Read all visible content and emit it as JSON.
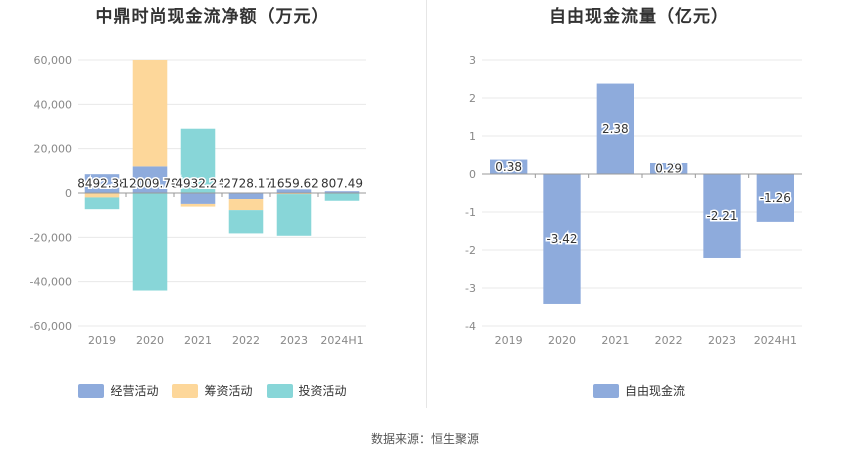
{
  "charts": [
    {
      "title": "中鼎时尚现金流净额（万元）",
      "chart_data": {
        "type": "bar",
        "stacked": true,
        "categories": [
          "2019",
          "2020",
          "2021",
          "2022",
          "2023",
          "2024H1"
        ],
        "series": [
          {
            "name": "经营活动",
            "color": "#8eabdc",
            "values": [
              8492.38,
              12009.78,
              -4932.24,
              -2728.17,
              1659.62,
              807.49
            ]
          },
          {
            "name": "筹资活动",
            "color": "#fdd79a",
            "values": [
              -2000,
              48000,
              -1200,
              -5000,
              -500,
              0
            ]
          },
          {
            "name": "投资活动",
            "color": "#88d6d8",
            "values": [
              -5300,
              -44000,
              29000,
              -10500,
              -18800,
              -3500
            ]
          }
        ],
        "data_labels": [
          "8492.38",
          "12009.78",
          "-4932.24",
          "-2728.17",
          "1659.62",
          "807.49"
        ],
        "ylim": [
          -60000,
          60000
        ],
        "yticks": [
          -60000,
          -40000,
          -20000,
          0,
          20000,
          40000,
          60000
        ],
        "ytick_labels": [
          "-60,000",
          "-40,000",
          "-20,000",
          "0",
          "20,000",
          "40,000",
          "60,000"
        ],
        "grid": true,
        "legend_position": "bottom"
      }
    },
    {
      "title": "自由现金流量（亿元）",
      "chart_data": {
        "type": "bar",
        "categories": [
          "2019",
          "2020",
          "2021",
          "2022",
          "2023",
          "2024H1"
        ],
        "series": [
          {
            "name": "自由现金流",
            "color": "#8eabdc",
            "values": [
              0.38,
              -3.42,
              2.38,
              0.29,
              -2.21,
              -1.26
            ]
          }
        ],
        "data_labels": [
          "0.38",
          "-3.42",
          "2.38",
          "0.29",
          "-2.21",
          "-1.26"
        ],
        "ylim": [
          -4,
          3
        ],
        "yticks": [
          -4,
          -3,
          -2,
          -1,
          0,
          1,
          2,
          3
        ],
        "ytick_labels": [
          "-4",
          "-3",
          "-2",
          "-1",
          "0",
          "1",
          "2",
          "3"
        ],
        "grid": true,
        "legend_position": "bottom"
      }
    }
  ],
  "source": "数据来源：恒生聚源"
}
